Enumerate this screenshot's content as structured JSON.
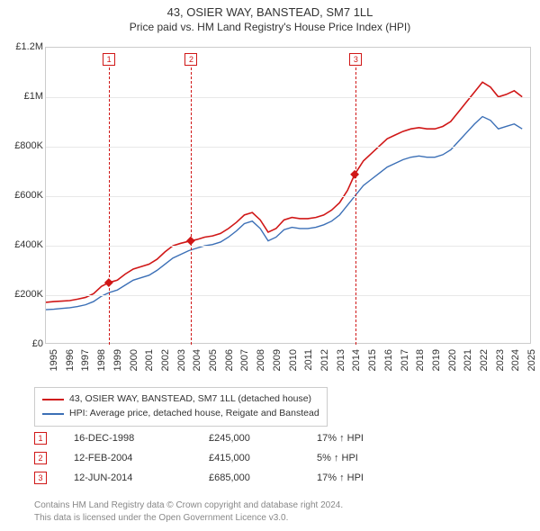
{
  "title": "43, OSIER WAY, BANSTEAD, SM7 1LL",
  "subtitle": "Price paid vs. HM Land Registry's House Price Index (HPI)",
  "chart": {
    "type": "line",
    "background_color": "#ffffff",
    "grid_color": "#e8e8e8",
    "border_color": "#cccccc",
    "x_range": [
      1995,
      2025.5
    ],
    "y_range": [
      0,
      1200000
    ],
    "y_ticks": [
      {
        "v": 0,
        "label": "£0"
      },
      {
        "v": 200000,
        "label": "£200K"
      },
      {
        "v": 400000,
        "label": "£400K"
      },
      {
        "v": 600000,
        "label": "£600K"
      },
      {
        "v": 800000,
        "label": "£800K"
      },
      {
        "v": 1000000,
        "label": "£1M"
      },
      {
        "v": 1200000,
        "label": "£1.2M"
      }
    ],
    "x_ticks": [
      1995,
      1996,
      1997,
      1998,
      1999,
      2000,
      2001,
      2002,
      2003,
      2004,
      2005,
      2006,
      2007,
      2008,
      2009,
      2010,
      2011,
      2012,
      2013,
      2014,
      2015,
      2016,
      2017,
      2018,
      2019,
      2020,
      2021,
      2022,
      2023,
      2024,
      2025
    ],
    "series": [
      {
        "name": "43, OSIER WAY, BANSTEAD, SM7 1LL (detached house)",
        "color": "#d01717",
        "line_width": 1.6,
        "data": [
          [
            1995.0,
            165000
          ],
          [
            1995.5,
            168000
          ],
          [
            1996.0,
            170000
          ],
          [
            1996.5,
            172000
          ],
          [
            1997.0,
            178000
          ],
          [
            1997.5,
            185000
          ],
          [
            1998.0,
            200000
          ],
          [
            1998.5,
            230000
          ],
          [
            1998.96,
            245000
          ],
          [
            1999.5,
            255000
          ],
          [
            2000.0,
            280000
          ],
          [
            2000.5,
            300000
          ],
          [
            2001.0,
            310000
          ],
          [
            2001.5,
            320000
          ],
          [
            2002.0,
            340000
          ],
          [
            2002.5,
            370000
          ],
          [
            2003.0,
            395000
          ],
          [
            2003.5,
            405000
          ],
          [
            2004.12,
            415000
          ],
          [
            2004.5,
            420000
          ],
          [
            2005.0,
            430000
          ],
          [
            2005.5,
            435000
          ],
          [
            2006.0,
            445000
          ],
          [
            2006.5,
            465000
          ],
          [
            2007.0,
            490000
          ],
          [
            2007.5,
            520000
          ],
          [
            2008.0,
            530000
          ],
          [
            2008.5,
            500000
          ],
          [
            2009.0,
            450000
          ],
          [
            2009.5,
            465000
          ],
          [
            2010.0,
            500000
          ],
          [
            2010.5,
            510000
          ],
          [
            2011.0,
            505000
          ],
          [
            2011.5,
            505000
          ],
          [
            2012.0,
            510000
          ],
          [
            2012.5,
            520000
          ],
          [
            2013.0,
            540000
          ],
          [
            2013.5,
            570000
          ],
          [
            2014.0,
            620000
          ],
          [
            2014.45,
            685000
          ],
          [
            2015.0,
            740000
          ],
          [
            2015.5,
            770000
          ],
          [
            2016.0,
            800000
          ],
          [
            2016.5,
            830000
          ],
          [
            2017.0,
            845000
          ],
          [
            2017.5,
            860000
          ],
          [
            2018.0,
            870000
          ],
          [
            2018.5,
            875000
          ],
          [
            2019.0,
            870000
          ],
          [
            2019.5,
            870000
          ],
          [
            2020.0,
            880000
          ],
          [
            2020.5,
            900000
          ],
          [
            2021.0,
            940000
          ],
          [
            2021.5,
            980000
          ],
          [
            2022.0,
            1020000
          ],
          [
            2022.5,
            1060000
          ],
          [
            2023.0,
            1040000
          ],
          [
            2023.5,
            1000000
          ],
          [
            2024.0,
            1010000
          ],
          [
            2024.5,
            1025000
          ],
          [
            2025.0,
            1000000
          ]
        ]
      },
      {
        "name": "HPI: Average price, detached house, Reigate and Banstead",
        "color": "#3b6fb6",
        "line_width": 1.4,
        "data": [
          [
            1995.0,
            135000
          ],
          [
            1995.5,
            137000
          ],
          [
            1996.0,
            140000
          ],
          [
            1996.5,
            143000
          ],
          [
            1997.0,
            148000
          ],
          [
            1997.5,
            155000
          ],
          [
            1998.0,
            168000
          ],
          [
            1998.5,
            190000
          ],
          [
            1999.0,
            205000
          ],
          [
            1999.5,
            215000
          ],
          [
            2000.0,
            235000
          ],
          [
            2000.5,
            255000
          ],
          [
            2001.0,
            265000
          ],
          [
            2001.5,
            275000
          ],
          [
            2002.0,
            295000
          ],
          [
            2002.5,
            320000
          ],
          [
            2003.0,
            345000
          ],
          [
            2003.5,
            360000
          ],
          [
            2004.0,
            375000
          ],
          [
            2004.5,
            385000
          ],
          [
            2005.0,
            395000
          ],
          [
            2005.5,
            400000
          ],
          [
            2006.0,
            410000
          ],
          [
            2006.5,
            430000
          ],
          [
            2007.0,
            455000
          ],
          [
            2007.5,
            485000
          ],
          [
            2008.0,
            495000
          ],
          [
            2008.5,
            465000
          ],
          [
            2009.0,
            415000
          ],
          [
            2009.5,
            430000
          ],
          [
            2010.0,
            460000
          ],
          [
            2010.5,
            470000
          ],
          [
            2011.0,
            465000
          ],
          [
            2011.5,
            465000
          ],
          [
            2012.0,
            470000
          ],
          [
            2012.5,
            480000
          ],
          [
            2013.0,
            495000
          ],
          [
            2013.5,
            520000
          ],
          [
            2014.0,
            560000
          ],
          [
            2014.5,
            600000
          ],
          [
            2015.0,
            640000
          ],
          [
            2015.5,
            665000
          ],
          [
            2016.0,
            690000
          ],
          [
            2016.5,
            715000
          ],
          [
            2017.0,
            730000
          ],
          [
            2017.5,
            745000
          ],
          [
            2018.0,
            755000
          ],
          [
            2018.5,
            760000
          ],
          [
            2019.0,
            755000
          ],
          [
            2019.5,
            755000
          ],
          [
            2020.0,
            765000
          ],
          [
            2020.5,
            785000
          ],
          [
            2021.0,
            820000
          ],
          [
            2021.5,
            855000
          ],
          [
            2022.0,
            890000
          ],
          [
            2022.5,
            920000
          ],
          [
            2023.0,
            905000
          ],
          [
            2023.5,
            870000
          ],
          [
            2024.0,
            880000
          ],
          [
            2024.5,
            890000
          ],
          [
            2025.0,
            870000
          ]
        ]
      }
    ],
    "sale_markers": [
      {
        "n": "1",
        "x": 1998.96,
        "y": 245000
      },
      {
        "n": "2",
        "x": 2004.12,
        "y": 415000
      },
      {
        "n": "3",
        "x": 2014.45,
        "y": 685000
      }
    ],
    "sale_point_color": "#d01717",
    "sale_point_radius": 3.5
  },
  "legend": {
    "items": [
      {
        "color": "#d01717",
        "label": "43, OSIER WAY, BANSTEAD, SM7 1LL (detached house)"
      },
      {
        "color": "#3b6fb6",
        "label": "HPI: Average price, detached house, Reigate and Banstead"
      }
    ]
  },
  "sales": [
    {
      "n": "1",
      "date": "16-DEC-1998",
      "price": "£245,000",
      "diff": "17% ↑ HPI"
    },
    {
      "n": "2",
      "date": "12-FEB-2004",
      "price": "£415,000",
      "diff": "5% ↑ HPI"
    },
    {
      "n": "3",
      "date": "12-JUN-2014",
      "price": "£685,000",
      "diff": "17% ↑ HPI"
    }
  ],
  "footer": {
    "line1": "Contains HM Land Registry data © Crown copyright and database right 2024.",
    "line2": "This data is licensed under the Open Government Licence v3.0."
  }
}
